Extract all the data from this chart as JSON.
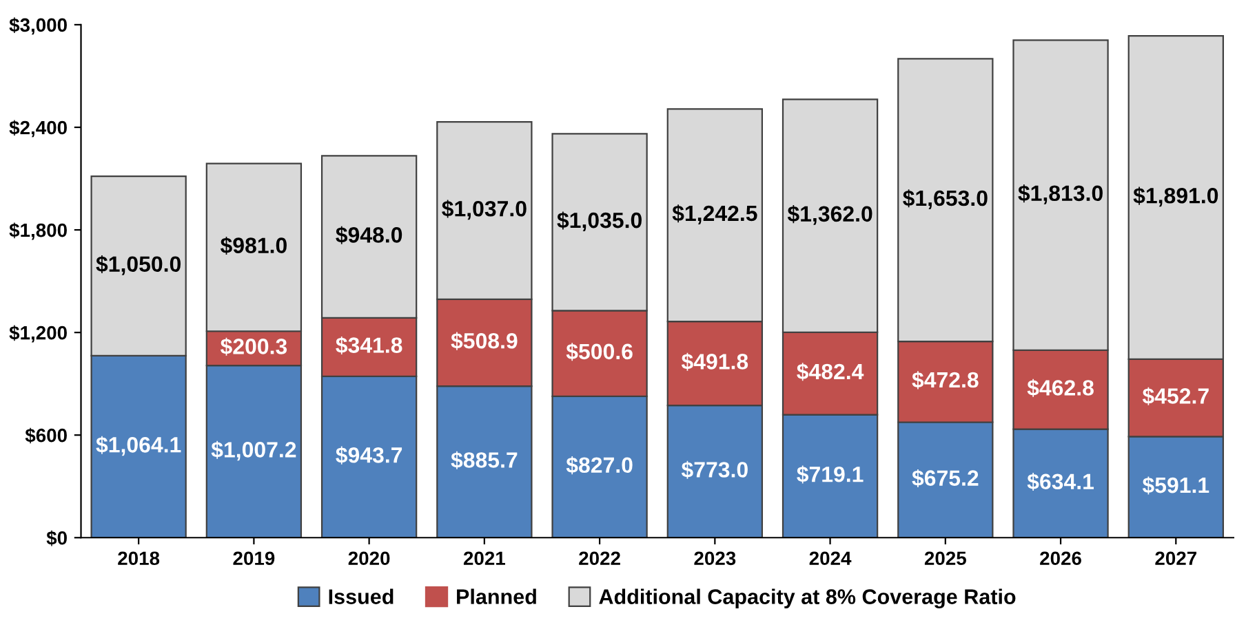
{
  "chart_data": {
    "type": "bar",
    "stacked": true,
    "categories": [
      "2018",
      "2019",
      "2020",
      "2021",
      "2022",
      "2023",
      "2024",
      "2025",
      "2026",
      "2027"
    ],
    "series": [
      {
        "name": "Issued",
        "color": "#4f81bd",
        "values": [
          1064.1,
          1007.2,
          943.7,
          885.7,
          827.0,
          773.0,
          719.1,
          675.2,
          634.1,
          591.1
        ],
        "value_labels": [
          "$1,064.1",
          "$1,007.2",
          "$943.7",
          "$885.7",
          "$827.0",
          "$773.0",
          "$719.1",
          "$675.2",
          "$634.1",
          "$591.1"
        ]
      },
      {
        "name": "Planned",
        "color": "#c0504d",
        "values": [
          null,
          200.3,
          341.8,
          508.9,
          500.6,
          491.8,
          482.4,
          472.8,
          462.8,
          452.7
        ],
        "value_labels": [
          null,
          "$200.3",
          "$341.8",
          "$508.9",
          "$500.6",
          "$491.8",
          "$482.4",
          "$472.8",
          "$462.8",
          "$452.7"
        ]
      },
      {
        "name": "Additional Capacity at 8% Coverage Ratio",
        "color": "#d9d9d9",
        "values": [
          1050.0,
          981.0,
          948.0,
          1037.0,
          1035.0,
          1242.5,
          1362.0,
          1653.0,
          1813.0,
          1891.0
        ],
        "value_labels": [
          "$1,050.0",
          "$981.0",
          "$948.0",
          "$1,037.0",
          "$1,035.0",
          "$1,242.5",
          "$1,362.0",
          "$1,653.0",
          "$1,813.0",
          "$1,891.0"
        ]
      }
    ],
    "ylim": [
      0,
      3000
    ],
    "yticks": [
      {
        "value": 0,
        "label": "$0"
      },
      {
        "value": 600,
        "label": "$600"
      },
      {
        "value": 1200,
        "label": "$1,200"
      },
      {
        "value": 1800,
        "label": "$1,800"
      },
      {
        "value": 2400,
        "label": "$2,400"
      },
      {
        "value": 3000,
        "label": "$3,000"
      }
    ],
    "legend": "bottom"
  }
}
